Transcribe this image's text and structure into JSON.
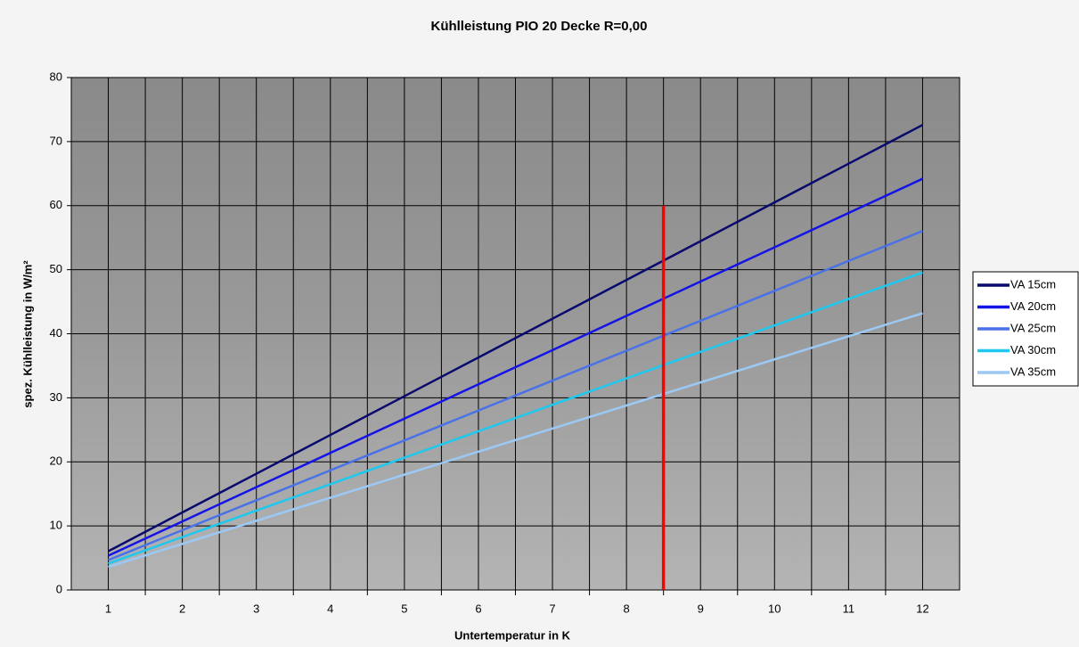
{
  "chart_data": {
    "type": "line",
    "title": "Kühlleistung PIO 20 Decke R=0,00",
    "x_label": "Untertemperatur in K",
    "y_label": "spez. Kühlleistung in W/m²",
    "x": [
      1,
      2,
      3,
      4,
      5,
      6,
      7,
      8,
      9,
      10,
      11,
      12
    ],
    "xlim": [
      0.5,
      12.5
    ],
    "xticks": [
      1,
      2,
      3,
      4,
      5,
      6,
      7,
      8,
      9,
      10,
      11,
      12
    ],
    "xminorticks": [
      1.5,
      2.5,
      3.5,
      4.5,
      5.5,
      6.5,
      7.5,
      8.5,
      9.5,
      10.5,
      11.5
    ],
    "ylim": [
      0,
      80
    ],
    "yticks": [
      0,
      10,
      20,
      30,
      40,
      50,
      60,
      70,
      80
    ],
    "grid": true,
    "legend": "right",
    "series": [
      {
        "name": "VA 15cm",
        "color": "#0a0a6e",
        "values": [
          6.05,
          12.1,
          18.15,
          24.2,
          30.25,
          36.3,
          42.35,
          48.4,
          54.45,
          60.5,
          66.55,
          72.6
        ]
      },
      {
        "name": "VA 20cm",
        "color": "#1414e6",
        "values": [
          5.35,
          10.7,
          16.05,
          21.4,
          26.75,
          32.1,
          37.45,
          42.8,
          48.15,
          53.5,
          58.85,
          64.2
        ]
      },
      {
        "name": "VA 25cm",
        "color": "#4a72e8",
        "values": [
          4.67,
          9.34,
          14.01,
          18.68,
          23.35,
          28.02,
          32.69,
          37.36,
          42.03,
          46.7,
          51.37,
          56.04
        ]
      },
      {
        "name": "VA 30cm",
        "color": "#1ec8ee",
        "values": [
          4.13,
          8.26,
          12.39,
          16.52,
          20.65,
          24.78,
          28.91,
          33.04,
          37.17,
          41.3,
          45.43,
          49.56
        ]
      },
      {
        "name": "VA 35cm",
        "color": "#9cc8f4",
        "values": [
          3.6,
          7.2,
          10.8,
          14.4,
          18.0,
          21.6,
          25.2,
          28.8,
          32.4,
          36.0,
          39.6,
          43.2
        ]
      }
    ],
    "vertical_line": {
      "x": 8.5,
      "y": [
        0,
        60
      ],
      "color": "#ff0000"
    }
  }
}
